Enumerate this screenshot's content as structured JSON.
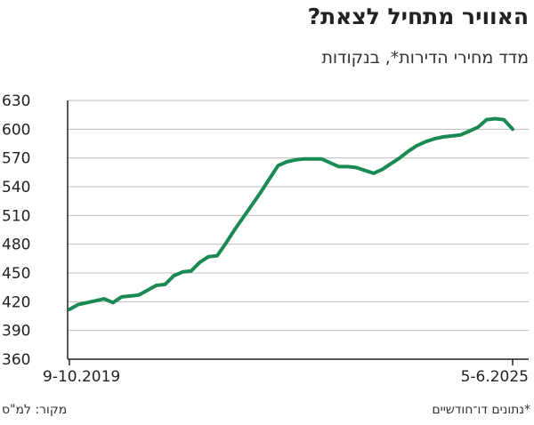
{
  "header": {
    "title": "האוויר מתחיל לצאת?",
    "subtitle": "מדד מחירי הדירות*, בנקודות"
  },
  "footer": {
    "source": "מקור: למ\"ס",
    "note": "*נתונים דו־חודשיים"
  },
  "colors": {
    "line": "#1a8a55",
    "axis": "#222222",
    "grid": "#bbbbbb"
  },
  "chart_data": {
    "type": "line",
    "title": "האוויר מתחיל לצאת?",
    "subtitle": "מדד מחירי הדירות*, בנקודות",
    "ylim": [
      360,
      630
    ],
    "y_ticks": [
      "630",
      "600",
      "570",
      "540",
      "510",
      "480",
      "450",
      "420",
      "390",
      "360"
    ],
    "x_tick_labels": [
      "9-10.2019",
      "5-6.2025"
    ],
    "grid": "horizontal",
    "series": [
      {
        "values": [
          412,
          417,
          419,
          421,
          423,
          419,
          425,
          426,
          427,
          432,
          437,
          438,
          447,
          451,
          452,
          461,
          467,
          468,
          481,
          495,
          508,
          521,
          534,
          548,
          562,
          566,
          568,
          569,
          569,
          569,
          565,
          561,
          561,
          560,
          557,
          554,
          558,
          564,
          570,
          577,
          583,
          587,
          590,
          592,
          593,
          594,
          598,
          602,
          610,
          611,
          610,
          600
        ]
      }
    ]
  }
}
